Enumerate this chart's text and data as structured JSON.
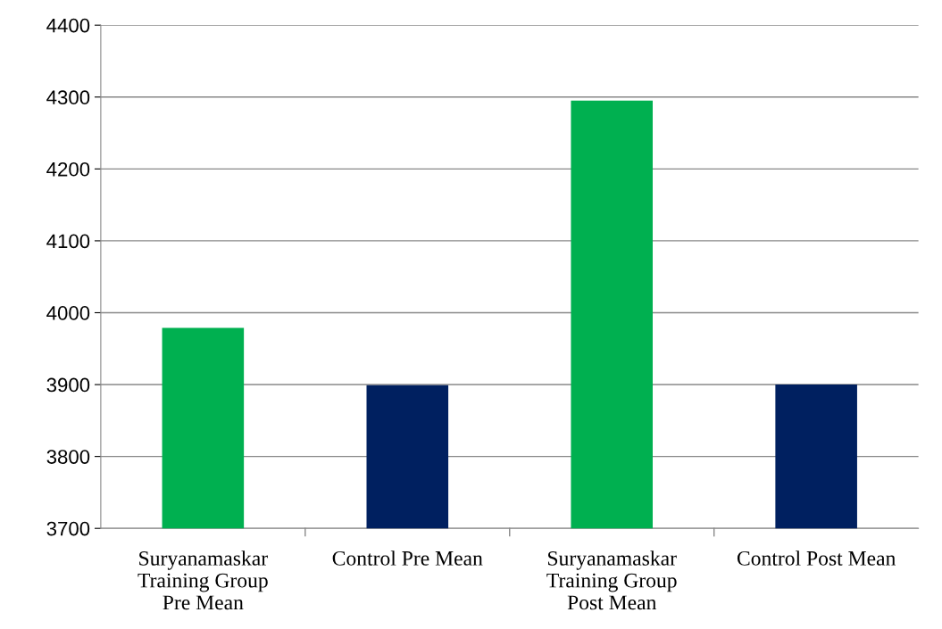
{
  "chart_data": {
    "type": "bar",
    "categories": [
      "Suryanamaskar\nTraining Group\nPre Mean",
      "Control Pre Mean",
      "Suryanamaskar\nTraining Group\nPost Mean",
      "Control Post Mean"
    ],
    "values": [
      3979,
      3899,
      4295,
      3900
    ],
    "colors": [
      "#00b050",
      "#002060",
      "#00b050",
      "#002060"
    ],
    "ylim": [
      3700,
      4400
    ],
    "yticks": [
      3700,
      3800,
      3900,
      4000,
      4100,
      4200,
      4300,
      4400
    ],
    "grid": "y"
  }
}
